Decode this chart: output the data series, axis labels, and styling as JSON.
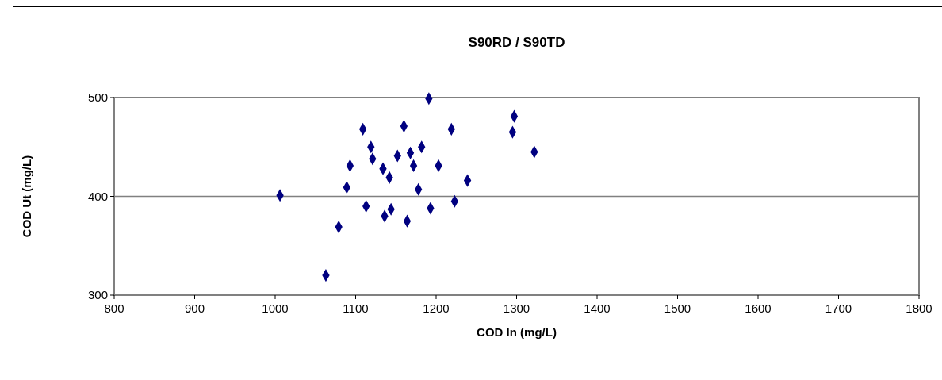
{
  "chart_data": {
    "type": "scatter",
    "title": "S90RD / S90TD",
    "xlabel": "COD In (mg/L)",
    "ylabel": "COD Ut (mg/L)",
    "x": [
      1191,
      1109,
      1160,
      1219,
      1119,
      1182,
      1121,
      1152,
      1168,
      1093,
      1172,
      1203,
      1134,
      1142,
      1239,
      1089,
      1178,
      1006,
      1223,
      1113,
      1144,
      1193,
      1136,
      1164,
      1079,
      1063,
      1297,
      1295,
      1322
    ],
    "series": [
      {
        "color": "#000080",
        "values": [
          499,
          468,
          471,
          468,
          450,
          450,
          438,
          441,
          444,
          431,
          431,
          431,
          428,
          419,
          416,
          409,
          407,
          401,
          395,
          390,
          387,
          388,
          380,
          375,
          369,
          320,
          481,
          465,
          445
        ]
      }
    ],
    "xlim": [
      800,
      1800
    ],
    "xticks": [
      800,
      900,
      1000,
      1100,
      1200,
      1300,
      1400,
      1500,
      1600,
      1700,
      1800
    ],
    "ylim": [
      300,
      500
    ],
    "yticks": [
      300,
      400,
      500
    ],
    "grid": "y",
    "marker": "diamond"
  }
}
